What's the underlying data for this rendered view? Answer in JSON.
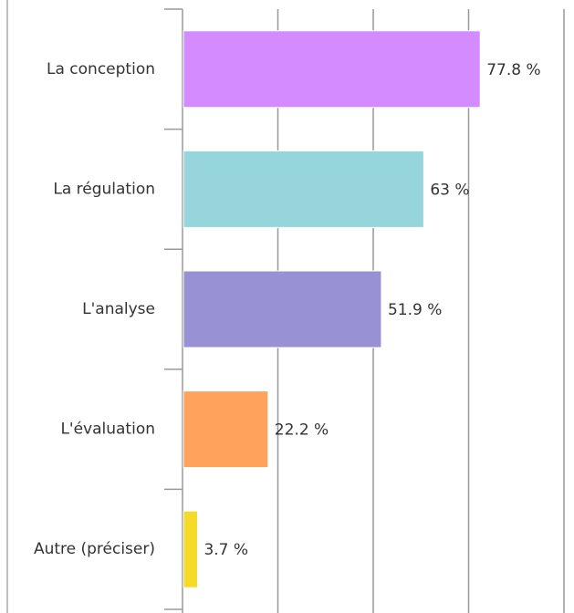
{
  "chart_data": {
    "type": "bar",
    "orientation": "horizontal",
    "categories": [
      "La conception",
      "La régulation",
      "L'analyse",
      "L'évaluation",
      "Autre (préciser)"
    ],
    "values": [
      77.8,
      63,
      51.9,
      22.2,
      3.7
    ],
    "value_labels": [
      "77.8 %",
      "63 %",
      "51.9 %",
      "22.2 %",
      "3.7 %"
    ],
    "colors": [
      "#d38bff",
      "#97d5dc",
      "#9892d4",
      "#ffa25c",
      "#f5da2a"
    ],
    "xlim": [
      0,
      100
    ],
    "xticks": [
      25,
      50,
      75,
      100
    ],
    "grid": true
  }
}
